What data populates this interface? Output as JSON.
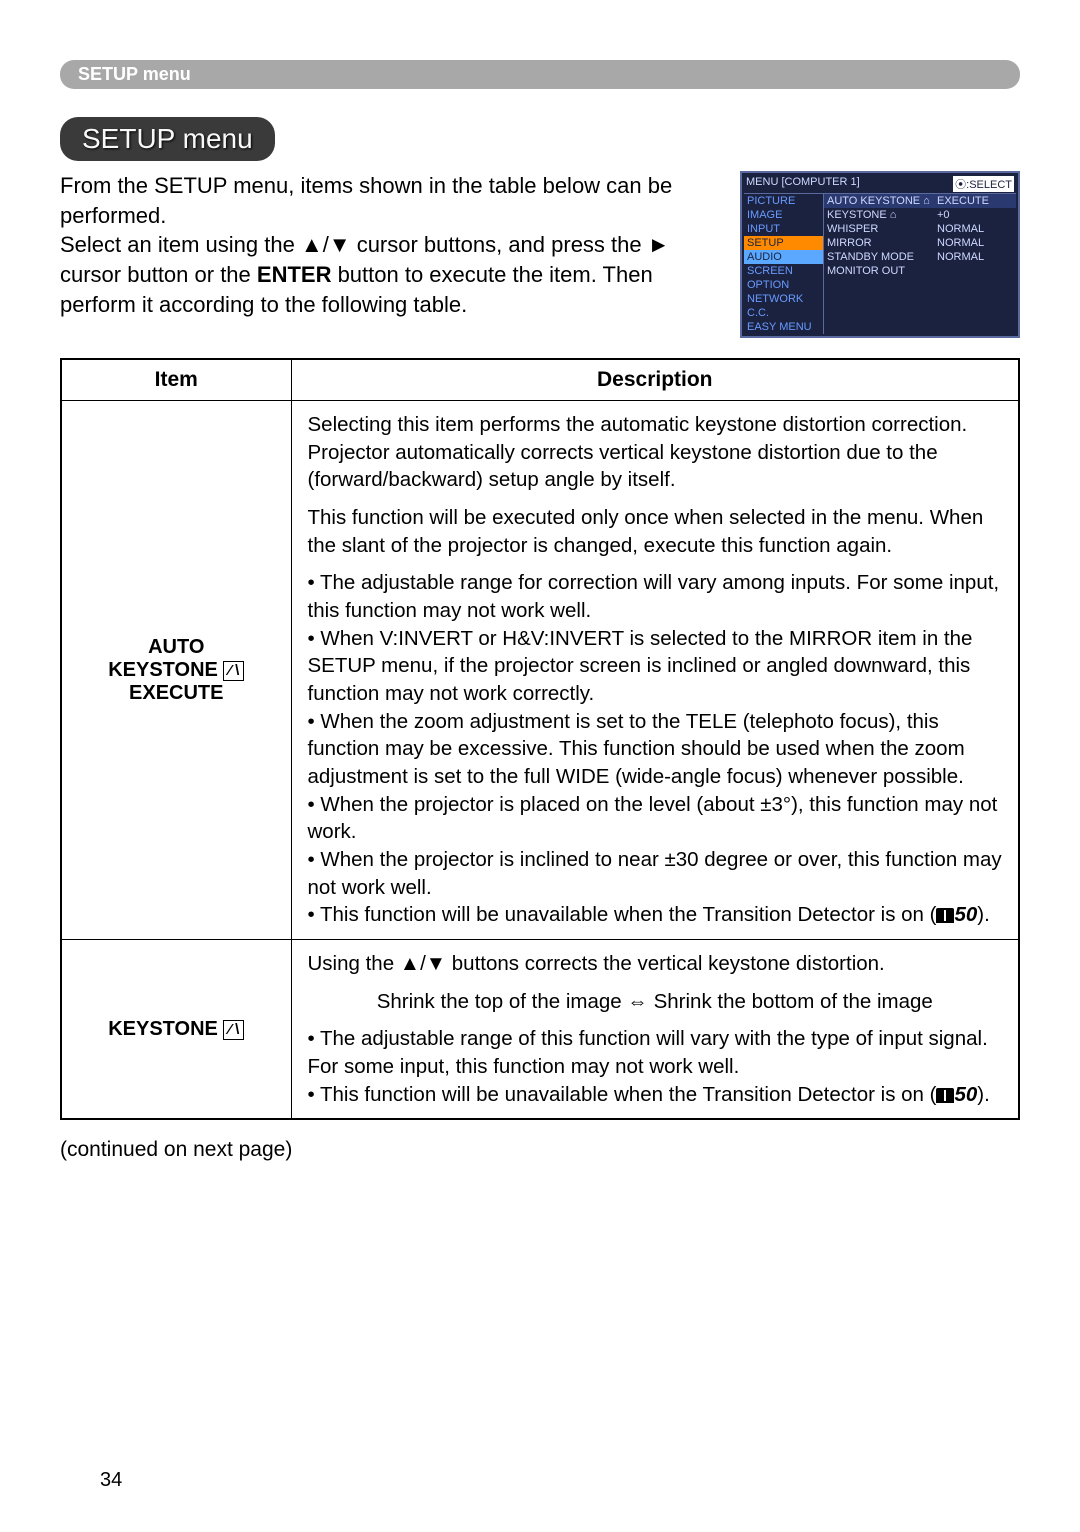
{
  "page_number": "34",
  "header_bar": "SETUP menu",
  "title": "SETUP menu",
  "intro": {
    "p1": "From the SETUP menu, items shown in the table below can be performed.",
    "p2a": "Select an item using the ▲/▼ cursor buttons, and press the ► cursor button or the ",
    "p2_enter": "ENTER",
    "p2b": " button to execute the item. Then perform it according to the following table."
  },
  "screenshot": {
    "menu_label": "MENU [COMPUTER 1]",
    "select_label": "⦿:SELECT",
    "left_items": [
      "PICTURE",
      "IMAGE",
      "INPUT",
      "SETUP",
      "AUDIO",
      "SCREEN",
      "OPTION",
      "NETWORK",
      "C.C.",
      "EASY MENU"
    ],
    "right_rows": [
      {
        "c1": "AUTO KEYSTONE ⌂",
        "c2": "EXECUTE",
        "hl": true
      },
      {
        "c1": "KEYSTONE ⌂",
        "c2": "+0"
      },
      {
        "c1": "WHISPER",
        "c2": "NORMAL"
      },
      {
        "c1": "MIRROR",
        "c2": "NORMAL"
      },
      {
        "c1": "STANDBY MODE",
        "c2": "NORMAL"
      },
      {
        "c1": "MONITOR OUT",
        "c2": ""
      }
    ]
  },
  "table": {
    "headers": {
      "item": "Item",
      "desc": "Description"
    },
    "row1": {
      "item_l1": "AUTO",
      "item_l2": "KEYSTONE ",
      "item_l3": "EXECUTE",
      "p1": "Selecting this item performs the automatic keystone distortion correction. Projector automatically corrects vertical keystone distortion due to the (forward/backward) setup angle by itself.",
      "p2": "This function will be executed only once when selected in the menu. When the slant of the projector is changed, execute this function again.",
      "b1": "• The adjustable range for correction will vary among inputs. For some input, this function may not work well.",
      "b2": "• When V:INVERT or H&V:INVERT is selected to the MIRROR item in the SETUP menu, if the projector screen is inclined or angled downward, this function may not work correctly.",
      "b3": "• When the zoom adjustment is set to the TELE (telephoto focus), this function may be excessive. This function should be used when the zoom adjustment is set to the full WIDE (wide-angle focus) whenever possible.",
      "b4": "• When the projector is placed on the level (about ±3°), this function may not work.",
      "b5": "• When the projector is inclined to near ±30 degree or over, this function may not work well.",
      "b6a": "• This function will be unavailable when the Transition Detector is on (",
      "b6_ref": "50",
      "b6b": ")."
    },
    "row2": {
      "item": "KEYSTONE ",
      "p1": "Using the ▲/▼ buttons corrects the vertical keystone distortion.",
      "p2": "Shrink the top of the image ⇔ Shrink the bottom of the image",
      "b1": "• The adjustable range of this function will vary with the type of input signal. For some input, this function may not work well.",
      "b2a": "• This function will be unavailable when the Transition Detector is on (",
      "b2_ref": "50",
      "b2b": ")."
    }
  },
  "continued": "(continued on next page)"
}
